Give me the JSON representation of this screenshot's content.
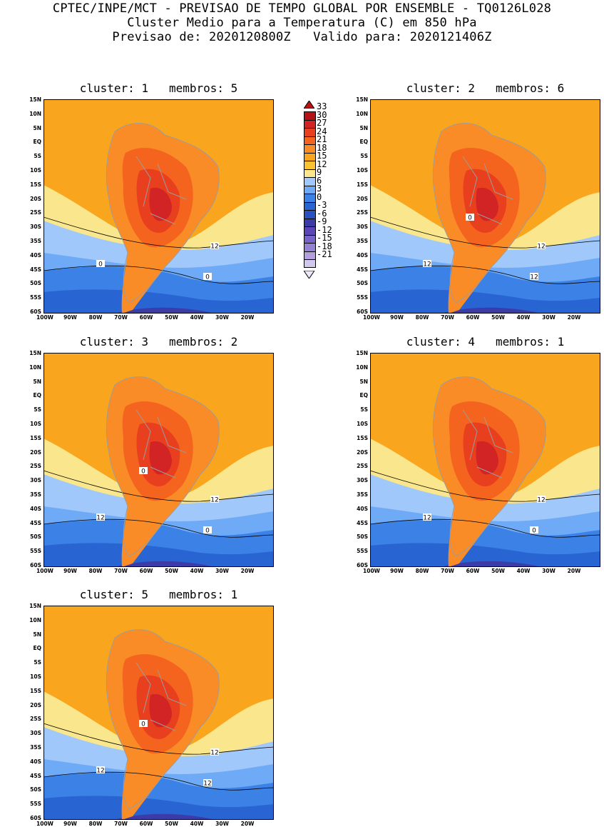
{
  "header": {
    "line1": "CPTEC/INPE/MCT - PREVISAO DE TEMPO GLOBAL POR ENSEMBLE - TQ0126L028",
    "line2": "Cluster Medio para a Temperatura (C) em 850 hPa",
    "line3": "Previsao de: 2020120800Z   Valido para: 2020121406Z"
  },
  "y_ticks": [
    "15N",
    "10N",
    "5N",
    "EQ",
    "5S",
    "10S",
    "15S",
    "20S",
    "25S",
    "30S",
    "35S",
    "40S",
    "45S",
    "50S",
    "55S",
    "60S"
  ],
  "x_ticks": [
    "100W",
    "90W",
    "80W",
    "70W",
    "60W",
    "50W",
    "40W",
    "30W",
    "20W"
  ],
  "colorbar": {
    "labels": [
      "33",
      "30",
      "27",
      "24",
      "21",
      "18",
      "15",
      "12",
      "9",
      "6",
      "3",
      "0",
      "-3",
      "-6",
      "-9",
      "-12",
      "-15",
      "-18",
      "-21"
    ],
    "colors": [
      "#b41414",
      "#d22424",
      "#e8401e",
      "#f5641e",
      "#fa8c28",
      "#faa51e",
      "#fac332",
      "#fae68c",
      "#a0c8fa",
      "#6eaaf5",
      "#3c82e6",
      "#2864d2",
      "#2850c0",
      "#3c3ca8",
      "#5a46b4",
      "#7864c8",
      "#9682d2",
      "#b4a0dc",
      "#d2c8ee"
    ]
  },
  "clusters": [
    {
      "title": "cluster: 1   membros: 5",
      "labels": [
        "12",
        "0",
        "0"
      ]
    },
    {
      "title": "cluster: 2   membros: 6",
      "labels": [
        "12",
        "12",
        "12",
        "0"
      ]
    },
    {
      "title": "cluster: 3   membros: 2",
      "labels": [
        "12",
        "12",
        "0",
        "0"
      ]
    },
    {
      "title": "cluster: 4   membros: 1",
      "labels": [
        "12",
        "12",
        "0"
      ]
    },
    {
      "title": "cluster: 5   membros: 1",
      "labels": [
        "12",
        "12",
        "12",
        "0"
      ]
    }
  ]
}
